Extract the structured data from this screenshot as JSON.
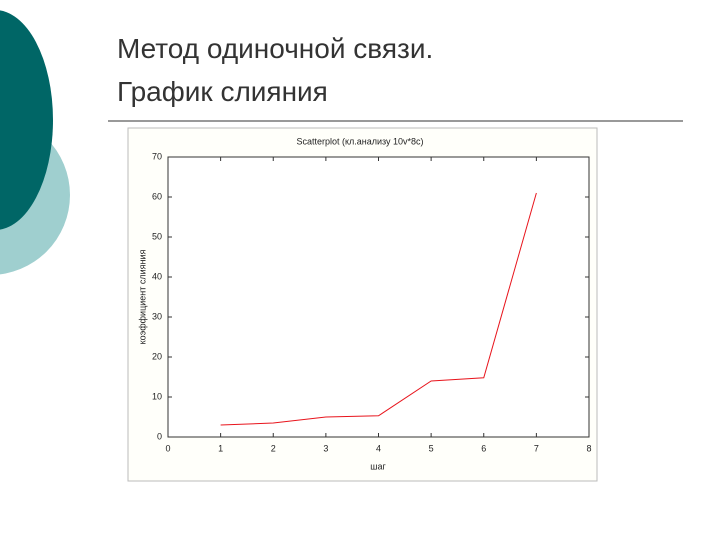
{
  "slide": {
    "title_lines": [
      "Метод одиночной связи.",
      "График слияния"
    ]
  },
  "chart_data": {
    "type": "line",
    "title": "Scatterplot (кл.анализу 10v*8c)",
    "x_label": "шаг",
    "y_label": "коэффициент слияния",
    "x": [
      1,
      2,
      3,
      4,
      5,
      6,
      7
    ],
    "values": [
      3,
      3.5,
      5,
      5.3,
      14,
      14.8,
      61
    ],
    "color": "#e8141c",
    "xlim": [
      0,
      8
    ],
    "xticks": [
      0,
      1,
      2,
      3,
      4,
      5,
      6,
      7,
      8
    ],
    "ylim": [
      0,
      70
    ],
    "yticks": [
      0,
      10,
      20,
      30,
      40,
      50,
      60,
      70
    ]
  }
}
